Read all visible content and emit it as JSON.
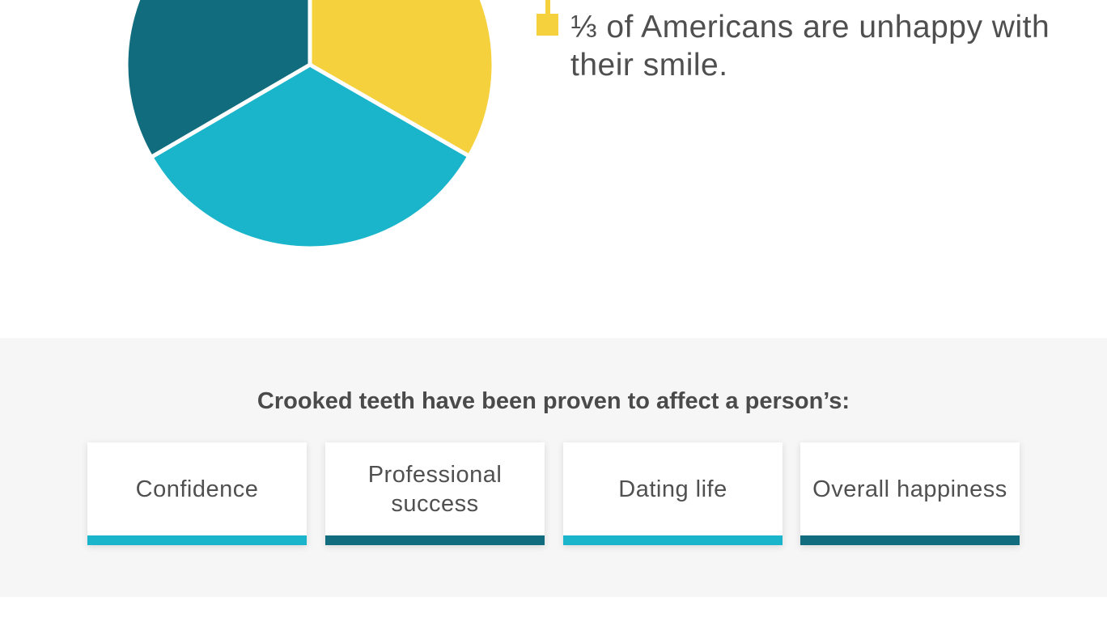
{
  "chart_data": {
    "type": "pie",
    "categories": [
      "",
      "",
      ""
    ],
    "values": [
      33.3,
      33.3,
      33.4
    ],
    "colors": [
      "#f5d13d",
      "#1ab5cb",
      "#116d7e"
    ],
    "start_angle_deg": 0,
    "direction": "clockwise",
    "legend": {
      "entries": [
        "⅓ of Americans are unhappy with their smile."
      ],
      "placement": "right"
    }
  },
  "section": {
    "title": "Crooked teeth have been proven to affect a person’s:",
    "cards": [
      {
        "label": "Confidence",
        "bar_color": "#1ab5cb"
      },
      {
        "label": "Professional success",
        "bar_color": "#116d7e"
      },
      {
        "label": "Dating life",
        "bar_color": "#1ab5cb"
      },
      {
        "label": "Overall happiness",
        "bar_color": "#116d7e"
      }
    ]
  }
}
